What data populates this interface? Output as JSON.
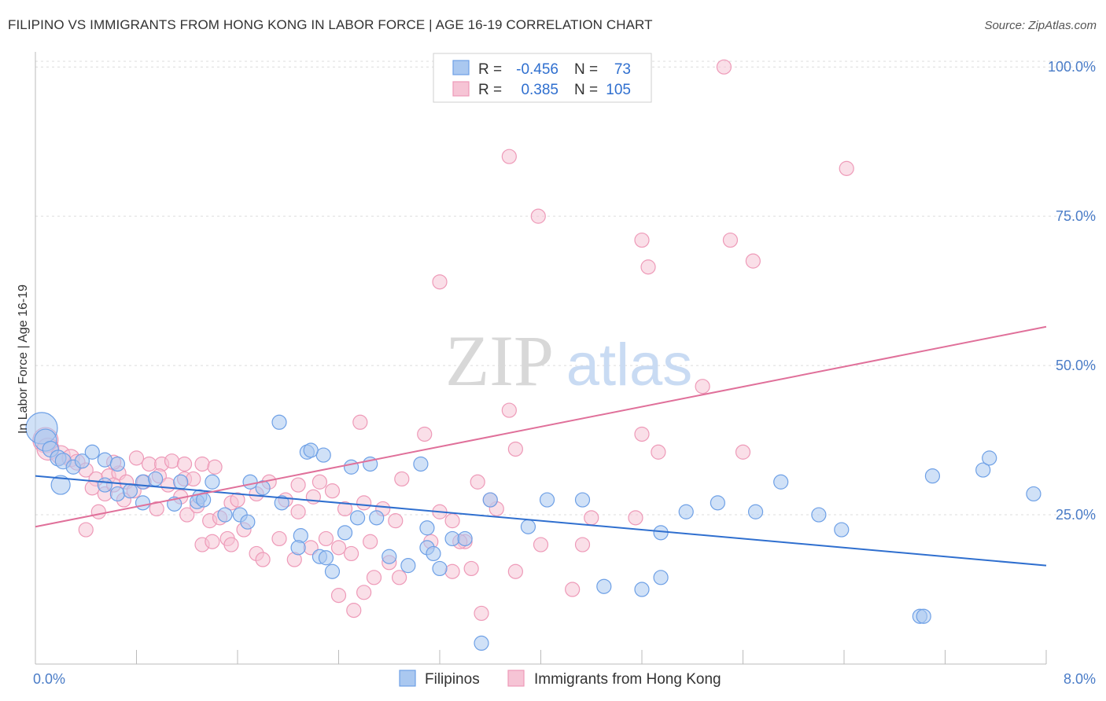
{
  "title": "FILIPINO VS IMMIGRANTS FROM HONG KONG IN LABOR FORCE | AGE 16-19 CORRELATION CHART",
  "source": "Source: ZipAtlas.com",
  "watermark": {
    "zip": "ZIP",
    "atlas": "atlas"
  },
  "chart_data": {
    "type": "scatter",
    "ylabel": "In Labor Force | Age 16-19",
    "xlim": [
      0,
      8
    ],
    "ylim": [
      0,
      102
    ],
    "x_tick_labels": {
      "min": "0.0%",
      "max": "8.0%"
    },
    "y_ticks": [
      {
        "value": 25,
        "label": "25.0%"
      },
      {
        "value": 50,
        "label": "50.0%"
      },
      {
        "value": 75,
        "label": "75.0%"
      },
      {
        "value": 100,
        "label": "100.0%"
      }
    ],
    "grid": true,
    "legend_position": "top-center",
    "series": [
      {
        "name": "Filipinos",
        "color": "#6ea0e6",
        "fill": "#aac8f0",
        "line_color": "#2f6fcf",
        "r_label": "R =",
        "r": "-0.456",
        "n_label": "N =",
        "n": "73",
        "trend": {
          "x0": 0,
          "y0": 31.5,
          "x1": 8,
          "y1": 16.5
        },
        "points": [
          [
            0.05,
            39.5,
            20
          ],
          [
            0.08,
            37.5,
            14
          ],
          [
            0.12,
            36,
            10
          ],
          [
            0.18,
            34.5,
            10
          ],
          [
            0.22,
            34,
            10
          ],
          [
            0.3,
            33,
            9
          ],
          [
            0.37,
            34,
            9
          ],
          [
            0.45,
            35.5,
            9
          ],
          [
            0.55,
            34.2,
            9
          ],
          [
            0.65,
            33.5,
            9
          ],
          [
            0.2,
            30,
            12
          ],
          [
            0.55,
            30,
            9
          ],
          [
            0.65,
            28.5,
            9
          ],
          [
            0.75,
            29,
            9
          ],
          [
            0.85,
            30.5,
            9
          ],
          [
            0.95,
            31,
            9
          ],
          [
            1.15,
            30.5,
            9
          ],
          [
            1.4,
            30.5,
            9
          ],
          [
            1.7,
            30.5,
            9
          ],
          [
            1.8,
            29.5,
            9
          ],
          [
            0.85,
            27,
            9
          ],
          [
            1.1,
            26.8,
            9
          ],
          [
            1.3,
            28,
            9
          ],
          [
            1.28,
            27.2,
            9
          ],
          [
            1.5,
            25,
            9
          ],
          [
            1.62,
            25,
            9
          ],
          [
            1.68,
            23.8,
            9
          ],
          [
            1.95,
            27,
            9
          ],
          [
            2.15,
            35.5,
            9
          ],
          [
            2.28,
            35,
            9
          ],
          [
            1.93,
            40.5,
            9
          ],
          [
            2.5,
            33,
            9
          ],
          [
            2.65,
            33.5,
            9
          ],
          [
            2.25,
            18,
            9
          ],
          [
            2.35,
            15.5,
            9
          ],
          [
            2.1,
            21.5,
            9
          ],
          [
            2.08,
            19.5,
            9
          ],
          [
            2.45,
            22,
            9
          ],
          [
            2.55,
            24.5,
            9
          ],
          [
            2.7,
            24.5,
            9
          ],
          [
            2.8,
            18,
            9
          ],
          [
            2.95,
            16.5,
            9
          ],
          [
            3.1,
            19.5,
            9
          ],
          [
            3.15,
            18.5,
            9
          ],
          [
            3.1,
            22.8,
            9
          ],
          [
            3.2,
            16,
            9
          ],
          [
            3.3,
            21,
            9
          ],
          [
            3.4,
            21,
            9
          ],
          [
            3.6,
            27.5,
            9
          ],
          [
            3.53,
            3.5,
            9
          ],
          [
            3.9,
            23,
            9
          ],
          [
            4.05,
            27.5,
            9
          ],
          [
            4.33,
            27.5,
            9
          ],
          [
            4.5,
            13,
            9
          ],
          [
            4.8,
            12.5,
            9
          ],
          [
            4.95,
            14.5,
            9
          ],
          [
            4.95,
            22,
            9
          ],
          [
            5.15,
            25.5,
            9
          ],
          [
            5.4,
            27,
            9
          ],
          [
            5.7,
            25.5,
            9
          ],
          [
            5.9,
            30.5,
            9
          ],
          [
            6.2,
            25,
            9
          ],
          [
            6.38,
            22.5,
            9
          ],
          [
            7.1,
            31.5,
            9
          ],
          [
            7.5,
            32.5,
            9
          ],
          [
            7.55,
            34.5,
            9
          ],
          [
            7.9,
            28.5,
            9
          ],
          [
            1.33,
            27.5,
            9
          ],
          [
            7.0,
            8,
            9
          ],
          [
            7.03,
            8,
            9
          ],
          [
            2.18,
            35.8,
            9
          ],
          [
            3.05,
            33.5,
            9
          ],
          [
            2.3,
            17.8,
            9
          ]
        ]
      },
      {
        "name": "Immigrants from Hong Kong",
        "color": "#ee9ab8",
        "fill": "#f6c4d5",
        "line_color": "#e0709a",
        "r_label": "R =",
        "r": "0.385",
        "n_label": "N =",
        "n": "105",
        "trend": {
          "x0": 0,
          "y0": 23,
          "x1": 8,
          "y1": 56.5
        },
        "points": [
          [
            0.08,
            37.5,
            16
          ],
          [
            0.1,
            36,
            14
          ],
          [
            0.2,
            35,
            12
          ],
          [
            0.28,
            34.5,
            11
          ],
          [
            0.33,
            33.8,
            10
          ],
          [
            0.4,
            32.5,
            9
          ],
          [
            0.48,
            31,
            9
          ],
          [
            0.58,
            31.5,
            9
          ],
          [
            0.66,
            32,
            9
          ],
          [
            0.72,
            30.5,
            9
          ],
          [
            0.8,
            34.5,
            9
          ],
          [
            0.9,
            33.5,
            9
          ],
          [
            1.0,
            33.5,
            9
          ],
          [
            1.08,
            34,
            9
          ],
          [
            1.18,
            31,
            9
          ],
          [
            0.45,
            29.5,
            9
          ],
          [
            0.55,
            28.5,
            9
          ],
          [
            0.62,
            30,
            9
          ],
          [
            0.7,
            27.5,
            9
          ],
          [
            0.78,
            29,
            9
          ],
          [
            0.86,
            30.5,
            9
          ],
          [
            0.98,
            31.5,
            9
          ],
          [
            1.05,
            30,
            9
          ],
          [
            1.15,
            28,
            9
          ],
          [
            1.25,
            31,
            9
          ],
          [
            1.32,
            33.5,
            9
          ],
          [
            1.42,
            33,
            9
          ],
          [
            0.5,
            25.5,
            9
          ],
          [
            0.96,
            26,
            9
          ],
          [
            1.2,
            25,
            9
          ],
          [
            1.28,
            26.5,
            9
          ],
          [
            1.38,
            24,
            9
          ],
          [
            1.46,
            24.5,
            9
          ],
          [
            1.55,
            27,
            9
          ],
          [
            1.6,
            27.5,
            9
          ],
          [
            1.75,
            28.5,
            9
          ],
          [
            1.85,
            30.5,
            9
          ],
          [
            1.98,
            27.5,
            9
          ],
          [
            2.08,
            25.5,
            9
          ],
          [
            2.2,
            28,
            9
          ],
          [
            2.35,
            29,
            9
          ],
          [
            2.45,
            26,
            9
          ],
          [
            2.6,
            27,
            9
          ],
          [
            2.75,
            26,
            9
          ],
          [
            2.85,
            24,
            9
          ],
          [
            1.32,
            20,
            9
          ],
          [
            1.4,
            20.5,
            9
          ],
          [
            1.52,
            21,
            9
          ],
          [
            1.65,
            22.5,
            9
          ],
          [
            1.75,
            18.5,
            9
          ],
          [
            1.8,
            17.5,
            9
          ],
          [
            1.93,
            21,
            9
          ],
          [
            2.05,
            17.5,
            9
          ],
          [
            2.18,
            19.5,
            9
          ],
          [
            2.3,
            21,
            9
          ],
          [
            2.4,
            19.5,
            9
          ],
          [
            2.5,
            18.5,
            9
          ],
          [
            2.65,
            20.5,
            9
          ],
          [
            2.8,
            17,
            9
          ],
          [
            2.88,
            14.5,
            9
          ],
          [
            2.6,
            12,
            9
          ],
          [
            2.4,
            11.5,
            9
          ],
          [
            2.52,
            9,
            9
          ],
          [
            0.4,
            22.5,
            9
          ],
          [
            2.57,
            40.5,
            9
          ],
          [
            2.9,
            31,
            9
          ],
          [
            3.08,
            38.5,
            9
          ],
          [
            3.2,
            25.5,
            9
          ],
          [
            3.3,
            24,
            9
          ],
          [
            3.4,
            20.5,
            9
          ],
          [
            3.5,
            30.5,
            9
          ],
          [
            3.65,
            26,
            9
          ],
          [
            3.53,
            8.5,
            9
          ],
          [
            3.45,
            16,
            9
          ],
          [
            3.6,
            27.5,
            9
          ],
          [
            3.75,
            42.5,
            9
          ],
          [
            3.8,
            36,
            9
          ],
          [
            3.8,
            15.5,
            9
          ],
          [
            4.0,
            20,
            9
          ],
          [
            4.25,
            12.5,
            9
          ],
          [
            4.33,
            20,
            9
          ],
          [
            4.4,
            24.5,
            9
          ],
          [
            3.13,
            20.5,
            9
          ],
          [
            4.75,
            24.5,
            9
          ],
          [
            4.8,
            38.5,
            9
          ],
          [
            4.93,
            35.5,
            9
          ],
          [
            5.28,
            46.5,
            9
          ],
          [
            5.6,
            35.5,
            9
          ],
          [
            3.2,
            64,
            9
          ],
          [
            3.75,
            85,
            9
          ],
          [
            3.98,
            75,
            9
          ],
          [
            4.8,
            71,
            9
          ],
          [
            4.85,
            66.5,
            9
          ],
          [
            5.45,
            100,
            9
          ],
          [
            5.5,
            71,
            9
          ],
          [
            5.68,
            67.5,
            9
          ],
          [
            6.42,
            83,
            9
          ],
          [
            2.08,
            30,
            9
          ],
          [
            2.25,
            30.5,
            9
          ],
          [
            1.18,
            33.5,
            9
          ],
          [
            0.62,
            33.8,
            9
          ],
          [
            3.36,
            20.5,
            9
          ],
          [
            1.55,
            20,
            9
          ],
          [
            3.3,
            15.5,
            9
          ],
          [
            2.68,
            14.5,
            9
          ]
        ]
      }
    ]
  }
}
